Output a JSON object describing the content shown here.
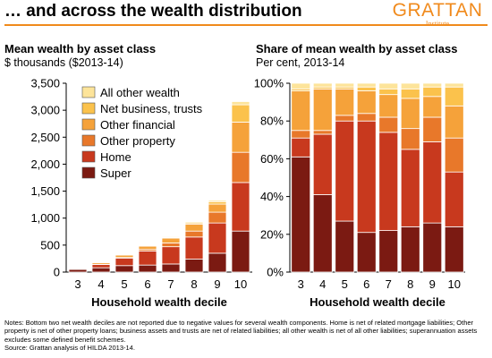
{
  "header": {
    "title": "… and across the wealth distribution",
    "logo_name": "GRATTAN",
    "logo_sub": "Institute",
    "accent_color": "#f08a1c"
  },
  "left_panel": {
    "title": "Mean wealth by asset class",
    "subtitle": "$ thousands ($2013-14)"
  },
  "right_panel": {
    "title": "Share of mean wealth by asset class",
    "subtitle": "Per cent, 2013-14"
  },
  "notes": {
    "line1": "Notes: Bottom two net wealth deciles are not reported due to negative values for several wealth components. Home is net of related mortgage liabilities; Other property is net of other property loans; business assets and trusts are net of related liabilities; all other wealth is net of all other liabilities; superannuation assets excludes some defined benefit schemes.",
    "line2": "Source: Grattan analysis of HILDA 2013-14."
  },
  "series_colors": [
    "#7b1a12",
    "#c8391e",
    "#e8782a",
    "#f5a23a",
    "#fbc24c",
    "#fde49a"
  ],
  "chart_data": [
    {
      "type": "bar",
      "stacked": true,
      "xlabel": "Household wealth decile",
      "ylabel": "",
      "categories": [
        "3",
        "4",
        "5",
        "6",
        "7",
        "8",
        "9",
        "10"
      ],
      "ylim": [
        0,
        3500
      ],
      "yticks": [
        0,
        500,
        1000,
        1500,
        2000,
        2500,
        3000,
        3500
      ],
      "ytick_labels": [
        "0",
        "500",
        "1,000",
        "1,500",
        "2,000",
        "2,500",
        "3,000",
        "3,500"
      ],
      "grid": false,
      "legend_position": "top-left",
      "legend_order": [
        "All other wealth",
        "Net business, trusts",
        "Other financial",
        "Other property",
        "Home",
        "Super"
      ],
      "series": [
        {
          "name": "Super",
          "values": [
            50,
            80,
            120,
            130,
            150,
            240,
            350,
            760
          ]
        },
        {
          "name": "Home",
          "values": [
            5,
            60,
            140,
            260,
            320,
            410,
            560,
            900
          ]
        },
        {
          "name": "Other property",
          "values": [
            3,
            5,
            10,
            30,
            70,
            110,
            200,
            560
          ]
        },
        {
          "name": "Other financial",
          "values": [
            12,
            30,
            45,
            60,
            90,
            130,
            150,
            560
          ]
        },
        {
          "name": "Net business, trusts",
          "values": [
            1,
            1,
            3,
            5,
            10,
            22,
            45,
            320
          ]
        },
        {
          "name": "All other wealth",
          "values": [
            2,
            4,
            6,
            10,
            15,
            20,
            25,
            60
          ]
        }
      ]
    },
    {
      "type": "bar",
      "stacked": true,
      "xlabel": "Household wealth decile",
      "ylabel": "",
      "categories": [
        "3",
        "4",
        "5",
        "6",
        "7",
        "8",
        "9",
        "10"
      ],
      "ylim": [
        0,
        100
      ],
      "yticks": [
        0,
        20,
        40,
        60,
        80,
        100
      ],
      "ytick_labels": [
        "0%",
        "20%",
        "40%",
        "60%",
        "80%",
        "100%"
      ],
      "grid": false,
      "series": [
        {
          "name": "Super",
          "values": [
            61,
            41,
            27,
            21,
            22,
            24,
            26,
            24
          ]
        },
        {
          "name": "Home",
          "values": [
            10,
            32,
            53,
            59,
            52,
            41,
            43,
            29
          ]
        },
        {
          "name": "Other property",
          "values": [
            4,
            2,
            3,
            4,
            8,
            11,
            13,
            18
          ]
        },
        {
          "name": "Other financial",
          "values": [
            21,
            22,
            14,
            12,
            12,
            16,
            11,
            17
          ]
        },
        {
          "name": "Net business, trusts",
          "values": [
            1,
            1,
            1,
            2,
            3,
            5,
            5,
            10
          ]
        },
        {
          "name": "All other wealth",
          "values": [
            3,
            2,
            2,
            2,
            3,
            3,
            2,
            2
          ]
        }
      ]
    }
  ]
}
